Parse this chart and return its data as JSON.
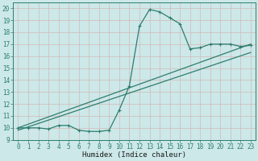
{
  "title": "",
  "xlabel": "Humidex (Indice chaleur)",
  "ylabel": "",
  "bg_color": "#cce8e8",
  "grid_color": "#aacccc",
  "line_color": "#2e7d6e",
  "xlim": [
    -0.5,
    23.5
  ],
  "ylim": [
    9,
    20.5
  ],
  "x_ticks": [
    0,
    1,
    2,
    3,
    4,
    5,
    6,
    7,
    8,
    9,
    10,
    11,
    12,
    13,
    14,
    15,
    16,
    17,
    18,
    19,
    20,
    21,
    22,
    23
  ],
  "y_ticks": [
    9,
    10,
    11,
    12,
    13,
    14,
    15,
    16,
    17,
    18,
    19,
    20
  ],
  "curve1_x": [
    0,
    1,
    2,
    3,
    4,
    5,
    6,
    7,
    8,
    9,
    10,
    11,
    12,
    13,
    14,
    15,
    16,
    17,
    18,
    19,
    20,
    21,
    22,
    23
  ],
  "curve1_y": [
    10.0,
    10.0,
    10.0,
    9.9,
    10.2,
    10.2,
    9.8,
    9.7,
    9.7,
    9.8,
    11.5,
    13.5,
    18.5,
    19.9,
    19.7,
    19.2,
    18.7,
    16.6,
    16.7,
    17.0,
    17.0,
    17.0,
    16.8,
    16.9
  ],
  "line1_x": [
    0,
    23
  ],
  "line1_y": [
    10.0,
    17.0
  ],
  "line2_x": [
    0,
    23
  ],
  "line2_y": [
    9.8,
    16.3
  ],
  "marker_size": 2.5,
  "line_width": 0.9,
  "xlabel_fontsize": 6.5,
  "tick_fontsize": 5.5
}
